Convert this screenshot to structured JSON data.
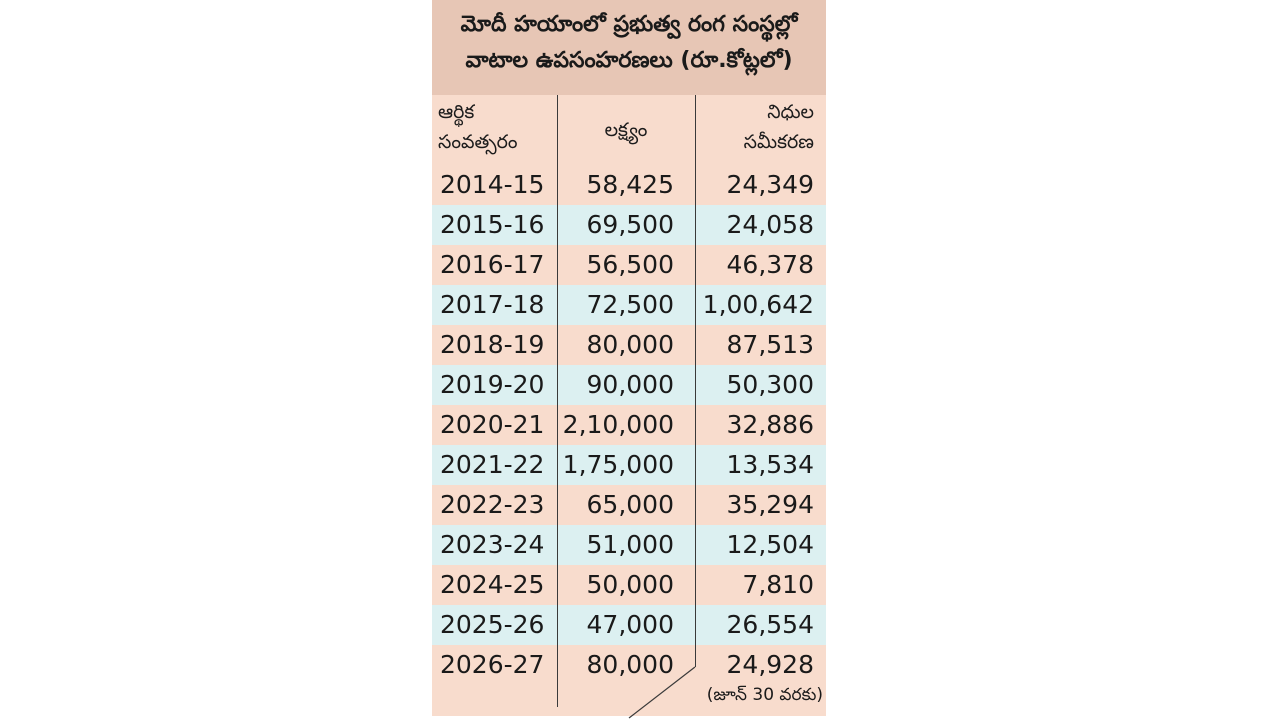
{
  "title": {
    "line1": "మోదీ హయాంలో ప్రభుత్వ రంగ సంస్థల్లో",
    "line2": "వాటాల ఉపసంహరణలు (రూ.కోట్లలో)"
  },
  "headers": {
    "year_line1": "ఆర్థిక",
    "year_line2": "సంవత్సరం",
    "target": "లక్ష్యం",
    "raised_line1": "నిధుల",
    "raised_line2": "సమీకరణ"
  },
  "rows": [
    {
      "year": "2014-15",
      "target": "58,425",
      "raised": "24,349"
    },
    {
      "year": "2015-16",
      "target": "69,500",
      "raised": "24,058"
    },
    {
      "year": "2016-17",
      "target": "56,500",
      "raised": "46,378"
    },
    {
      "year": "2017-18",
      "target": "72,500",
      "raised": "1,00,642"
    },
    {
      "year": "2018-19",
      "target": "80,000",
      "raised": "87,513"
    },
    {
      "year": "2019-20",
      "target": "90,000",
      "raised": "50,300"
    },
    {
      "year": "2020-21",
      "target": "2,10,000",
      "raised": "32,886"
    },
    {
      "year": "2021-22",
      "target": "1,75,000",
      "raised": "13,534"
    },
    {
      "year": "2022-23",
      "target": "65,000",
      "raised": "35,294"
    },
    {
      "year": "2023-24",
      "target": "51,000",
      "raised": "12,504"
    },
    {
      "year": "2024-25",
      "target": "50,000",
      "raised": "7,810"
    },
    {
      "year": "2025-26",
      "target": "47,000",
      "raised": "26,554"
    },
    {
      "year": "2026-27",
      "target": "80,000",
      "raised": "24,928"
    }
  ],
  "footnote": "(జూన్ 30 వరకు)",
  "colors": {
    "title_bg": "#e7c6b5",
    "row_peach": "#f8dccd",
    "row_blue": "#dcf0f1",
    "rule": "#3a3a3a"
  }
}
